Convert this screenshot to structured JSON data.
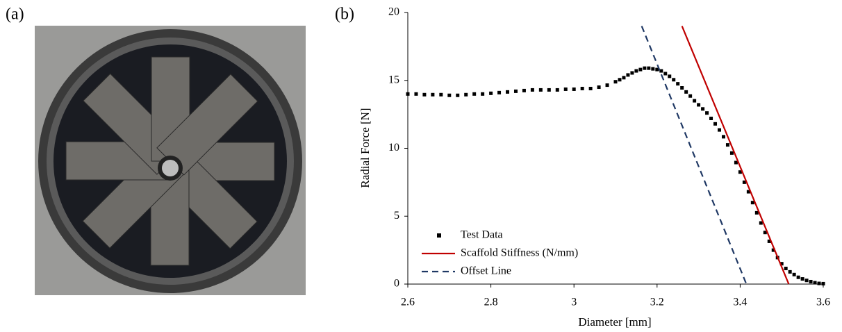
{
  "panel_labels": [
    "(a)",
    "(b)"
  ],
  "chart_data": {
    "type": "scatter",
    "xlabel": "Diameter [mm]",
    "ylabel": "Radial Force [N]",
    "xlim": [
      2.6,
      3.6
    ],
    "xticks": [
      2.6,
      2.8,
      3,
      3.2,
      3.4,
      3.6
    ],
    "ylim": [
      0,
      20
    ],
    "yticks": [
      0,
      5,
      10,
      15,
      20
    ],
    "grid": false,
    "legend": "lower left",
    "series": [
      {
        "name": "Test Data",
        "type": "scatter",
        "color": "#000000",
        "x": [
          2.6,
          2.62,
          2.64,
          2.66,
          2.68,
          2.7,
          2.72,
          2.74,
          2.76,
          2.78,
          2.8,
          2.82,
          2.84,
          2.86,
          2.88,
          2.9,
          2.92,
          2.94,
          2.96,
          2.98,
          3.0,
          3.02,
          3.04,
          3.06,
          3.08,
          3.1,
          3.11,
          3.12,
          3.13,
          3.14,
          3.15,
          3.16,
          3.17,
          3.18,
          3.19,
          3.2,
          3.21,
          3.22,
          3.23,
          3.24,
          3.25,
          3.26,
          3.27,
          3.28,
          3.29,
          3.3,
          3.31,
          3.32,
          3.33,
          3.34,
          3.35,
          3.36,
          3.37,
          3.38,
          3.39,
          3.4,
          3.41,
          3.42,
          3.43,
          3.44,
          3.45,
          3.46,
          3.47,
          3.48,
          3.49,
          3.5,
          3.51,
          3.52,
          3.53,
          3.54,
          3.55,
          3.56,
          3.57,
          3.58,
          3.59,
          3.6
        ],
        "values": [
          14.0,
          14.0,
          13.95,
          13.95,
          13.95,
          13.9,
          13.9,
          13.95,
          14.0,
          14.0,
          14.05,
          14.1,
          14.15,
          14.2,
          14.25,
          14.3,
          14.3,
          14.3,
          14.3,
          14.35,
          14.35,
          14.4,
          14.4,
          14.5,
          14.65,
          14.9,
          15.05,
          15.2,
          15.4,
          15.55,
          15.7,
          15.8,
          15.9,
          15.9,
          15.85,
          15.8,
          15.7,
          15.5,
          15.3,
          15.05,
          14.75,
          14.45,
          14.15,
          13.85,
          13.5,
          13.2,
          12.9,
          12.6,
          12.2,
          11.8,
          11.35,
          10.85,
          10.25,
          9.65,
          8.95,
          8.25,
          7.5,
          6.8,
          6.0,
          5.25,
          4.5,
          3.8,
          3.15,
          2.5,
          1.95,
          1.5,
          1.15,
          0.9,
          0.7,
          0.5,
          0.38,
          0.27,
          0.18,
          0.1,
          0.05,
          0.03
        ]
      },
      {
        "name": "Scaffold Stiffness (N/mm)",
        "type": "line",
        "color": "#c00000",
        "dash": false,
        "x": [
          3.26,
          3.517
        ],
        "values": [
          19,
          0
        ]
      },
      {
        "name": "Offset Line",
        "type": "line",
        "color": "#1f3864",
        "dash": true,
        "x": [
          3.163,
          3.415
        ],
        "values": [
          19,
          0
        ]
      }
    ]
  }
}
